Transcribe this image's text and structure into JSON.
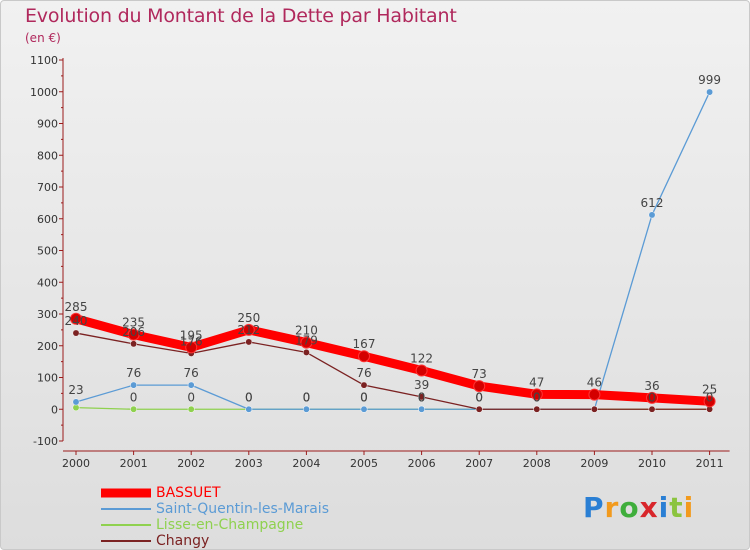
{
  "title": "Evolution du Montant de la Dette par Habitant",
  "unit": "(en €)",
  "logo": "Proxiti",
  "logo_colors": [
    "#2a7fd4",
    "#f29a1d",
    "#3fae3c",
    "#d8262b",
    "#2a7fd4",
    "#8bc43f",
    "#f29a1d"
  ],
  "chart_data": {
    "type": "line",
    "title": "Evolution du Montant de la Dette par Habitant",
    "ylabel": "(en €)",
    "xlabel": "",
    "x": [
      "2000",
      "2001",
      "2002",
      "2003",
      "2004",
      "2005",
      "2006",
      "2007",
      "2008",
      "2009",
      "2010",
      "2011"
    ],
    "ylim": [
      -100,
      1100
    ],
    "yticks": [
      -100,
      0,
      100,
      200,
      300,
      400,
      500,
      600,
      700,
      800,
      900,
      1000,
      1100
    ],
    "grid": false,
    "legend_position": "bottom-left",
    "series": [
      {
        "name": "BASSUET",
        "color": "#ff0000",
        "values": [
          285,
          235,
          195,
          250,
          210,
          167,
          122,
          73,
          47,
          46,
          36,
          25
        ],
        "labels": [
          "285",
          "235",
          "195",
          "250",
          "210",
          "167",
          "122",
          "73",
          "47",
          "46",
          "36",
          "25"
        ]
      },
      {
        "name": "Saint-Quentin-les-Marais",
        "color": "#5b9bd5",
        "values": [
          23,
          76,
          76,
          0,
          0,
          0,
          0,
          0,
          0,
          0,
          612,
          999
        ],
        "labels": [
          "23",
          "76",
          "76",
          "0",
          "0",
          "0",
          "0",
          "0",
          "0",
          "",
          "612",
          "999"
        ]
      },
      {
        "name": "Lisse-en-Champagne",
        "color": "#8fd14f",
        "values": [
          5,
          0,
          0,
          0,
          0,
          0,
          0,
          0,
          0,
          0,
          0,
          0
        ],
        "labels": [
          "",
          "0",
          "0",
          "0",
          "0",
          "0",
          "0",
          "",
          "",
          "",
          "",
          ""
        ]
      },
      {
        "name": "Changy",
        "color": "#7b2222",
        "values": [
          240,
          206,
          176,
          212,
          179,
          76,
          39,
          0,
          0,
          0,
          0,
          0
        ],
        "labels": [
          "240",
          "206",
          "176",
          "212",
          "179",
          "76",
          "39",
          "0",
          "0",
          "",
          "0",
          "0"
        ]
      }
    ]
  }
}
